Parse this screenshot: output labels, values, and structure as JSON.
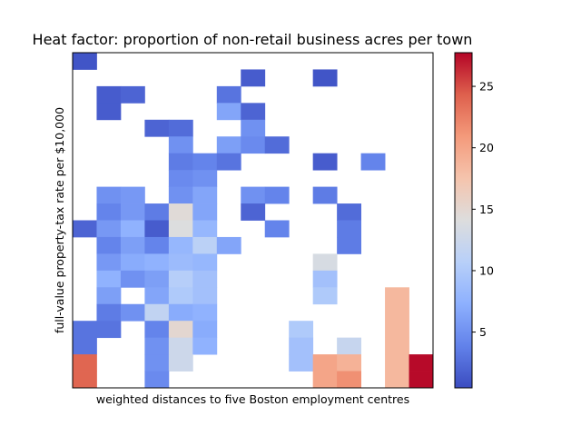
{
  "chart_data": {
    "type": "heatmap",
    "title": "Heat factor: proportion of non-retail business acres per town",
    "xlabel": "weighted distances to five Boston employment centres",
    "ylabel": "full-value property-tax rate per $10,000",
    "colormap": "coolwarm",
    "color_range": [
      0.46,
      27.74
    ],
    "colorbar_ticks": [
      5,
      10,
      15,
      20,
      25
    ],
    "grid": false,
    "x_ticks_shown": false,
    "y_ticks_shown": false,
    "n_cols": 15,
    "n_rows": 20,
    "cells": [
      [
        0,
        0,
        1.0
      ],
      [
        7,
        1,
        1.5
      ],
      [
        10,
        1,
        1.0
      ],
      [
        1,
        2,
        1.5
      ],
      [
        2,
        2,
        2.0
      ],
      [
        6,
        2,
        3.0
      ],
      [
        1,
        3,
        1.5
      ],
      [
        6,
        3,
        6.5
      ],
      [
        7,
        3,
        2.0
      ],
      [
        3,
        4,
        2.0
      ],
      [
        4,
        4,
        2.5
      ],
      [
        7,
        4,
        5.0
      ],
      [
        4,
        5,
        5.0
      ],
      [
        6,
        5,
        6.0
      ],
      [
        7,
        5,
        4.5
      ],
      [
        8,
        5,
        2.5
      ],
      [
        4,
        6,
        3.5
      ],
      [
        5,
        6,
        4.0
      ],
      [
        6,
        6,
        3.0
      ],
      [
        10,
        6,
        1.5
      ],
      [
        12,
        6,
        4.0
      ],
      [
        4,
        7,
        4.5
      ],
      [
        5,
        7,
        5.0
      ],
      [
        1,
        8,
        5.0
      ],
      [
        2,
        8,
        5.5
      ],
      [
        4,
        8,
        5.0
      ],
      [
        5,
        8,
        6.5
      ],
      [
        7,
        8,
        5.0
      ],
      [
        8,
        8,
        4.0
      ],
      [
        10,
        8,
        3.5
      ],
      [
        1,
        9,
        4.0
      ],
      [
        2,
        9,
        5.5
      ],
      [
        3,
        9,
        3.5
      ],
      [
        4,
        9,
        14.5
      ],
      [
        5,
        9,
        6.5
      ],
      [
        7,
        9,
        2.0
      ],
      [
        11,
        9,
        2.5
      ],
      [
        0,
        10,
        2.0
      ],
      [
        1,
        10,
        5.5
      ],
      [
        2,
        10,
        7.5
      ],
      [
        3,
        10,
        1.5
      ],
      [
        4,
        10,
        14.0
      ],
      [
        5,
        10,
        8.0
      ],
      [
        8,
        10,
        4.0
      ],
      [
        11,
        10,
        3.5
      ],
      [
        1,
        11,
        4.0
      ],
      [
        2,
        11,
        6.0
      ],
      [
        3,
        11,
        4.0
      ],
      [
        4,
        11,
        8.0
      ],
      [
        5,
        11,
        11.0
      ],
      [
        6,
        11,
        6.5
      ],
      [
        11,
        11,
        3.5
      ],
      [
        1,
        12,
        5.5
      ],
      [
        2,
        12,
        7.0
      ],
      [
        3,
        12,
        7.5
      ],
      [
        4,
        12,
        8.5
      ],
      [
        5,
        12,
        8.0
      ],
      [
        10,
        12,
        13.5
      ],
      [
        1,
        13,
        7.5
      ],
      [
        2,
        13,
        5.0
      ],
      [
        3,
        13,
        6.0
      ],
      [
        4,
        13,
        10.5
      ],
      [
        5,
        13,
        9.0
      ],
      [
        10,
        13,
        9.0
      ],
      [
        1,
        14,
        6.0
      ],
      [
        3,
        14,
        6.5
      ],
      [
        4,
        14,
        10.0
      ],
      [
        5,
        14,
        9.0
      ],
      [
        10,
        14,
        10.0
      ],
      [
        13,
        14,
        18.5
      ],
      [
        1,
        15,
        3.5
      ],
      [
        2,
        15,
        5.0
      ],
      [
        3,
        15,
        11.5
      ],
      [
        4,
        15,
        7.0
      ],
      [
        5,
        15,
        7.5
      ],
      [
        13,
        15,
        18.5
      ],
      [
        0,
        16,
        3.0
      ],
      [
        1,
        16,
        3.0
      ],
      [
        3,
        16,
        4.0
      ],
      [
        4,
        16,
        15.0
      ],
      [
        5,
        16,
        7.0
      ],
      [
        9,
        16,
        10.0
      ],
      [
        13,
        16,
        18.5
      ],
      [
        0,
        17,
        3.0
      ],
      [
        3,
        17,
        5.0
      ],
      [
        4,
        17,
        12.5
      ],
      [
        5,
        17,
        7.5
      ],
      [
        9,
        17,
        9.0
      ],
      [
        11,
        17,
        12.0
      ],
      [
        13,
        17,
        18.5
      ],
      [
        0,
        18,
        24.0
      ],
      [
        3,
        18,
        5.0
      ],
      [
        4,
        18,
        12.5
      ],
      [
        9,
        18,
        9.0
      ],
      [
        10,
        18,
        20.0
      ],
      [
        11,
        18,
        19.0
      ],
      [
        13,
        18,
        18.5
      ],
      [
        14,
        18,
        27.5
      ],
      [
        0,
        19,
        24.0
      ],
      [
        3,
        19,
        4.5
      ],
      [
        10,
        19,
        20.0
      ],
      [
        11,
        19,
        21.5
      ],
      [
        13,
        19,
        18.5
      ],
      [
        14,
        19,
        27.5
      ]
    ]
  }
}
